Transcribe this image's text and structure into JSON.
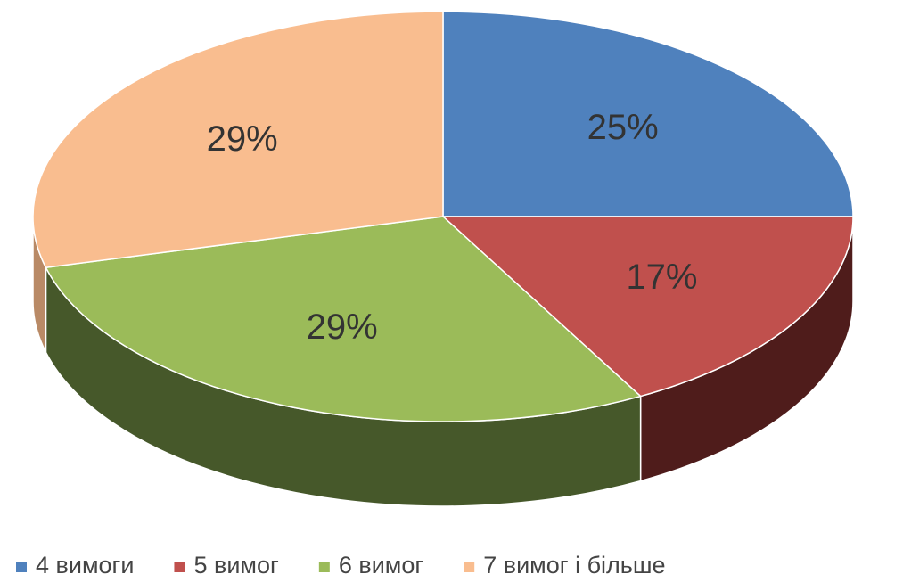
{
  "chart_data": {
    "type": "pie",
    "categories": [
      "4 вимоги",
      "5 вимог",
      "6 вимог",
      "7 вимог і більше"
    ],
    "values": [
      25,
      17,
      29,
      29
    ],
    "value_labels": [
      "25%",
      "17%",
      "29%",
      "29%"
    ],
    "colors": [
      "#4f81bd",
      "#c0504d",
      "#9bbb59",
      "#f9bd8f"
    ],
    "side_colors": [
      "#2c4a6e",
      "#4f1c1b",
      "#46582a",
      "#b98a66"
    ],
    "legend": "bottom"
  }
}
